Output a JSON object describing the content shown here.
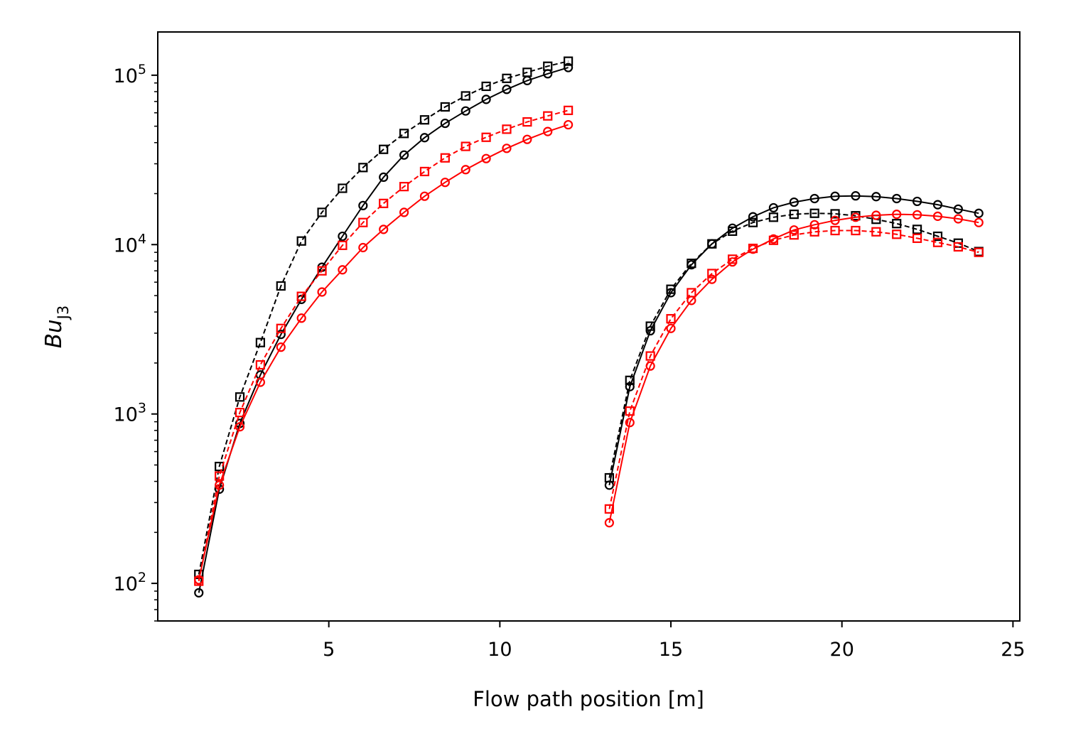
{
  "chart_data": {
    "type": "line",
    "title": "",
    "xlabel": "Flow path position [m]",
    "ylabel": {
      "base": "Bu",
      "subscript": "J3"
    },
    "x_scale": "linear",
    "y_scale": "log",
    "xlim": [
      0.0,
      25.2
    ],
    "ylim": [
      60,
      180000
    ],
    "x_ticks": [
      5,
      10,
      15,
      20,
      25
    ],
    "y_ticks": [
      {
        "value": 100,
        "base": "10",
        "exp": "2"
      },
      {
        "value": 1000,
        "base": "10",
        "exp": "3"
      },
      {
        "value": 10000,
        "base": "10",
        "exp": "4"
      },
      {
        "value": 100000,
        "base": "10",
        "exp": "5"
      }
    ],
    "grid": false,
    "legend": "none",
    "series": [
      {
        "color": "#000000",
        "marker": "circle",
        "linestyle": "solid",
        "segments": [
          {
            "x": [
              1.2,
              1.8,
              2.4,
              3.0,
              3.6,
              4.2,
              4.8,
              5.4,
              6.0,
              6.6,
              7.2,
              7.8,
              8.4,
              9.0,
              9.6,
              10.2,
              10.8,
              11.4,
              12.0
            ],
            "y": [
              88,
              360,
              880,
              1700,
              2950,
              4750,
              7350,
              11200,
              17000,
              25000,
              33800,
              42800,
              52000,
              61500,
              72000,
              82500,
              93000,
              102000,
              111000
            ]
          },
          {
            "x": [
              13.2,
              13.8,
              14.4,
              15.0,
              15.6,
              16.2,
              16.8,
              17.4,
              18.0,
              18.6,
              19.2,
              19.8,
              20.4,
              21.0,
              21.6,
              22.2,
              22.8,
              23.4,
              24.0
            ],
            "y": [
              380,
              1450,
              3100,
              5200,
              7600,
              10100,
              12500,
              14600,
              16500,
              17800,
              18700,
              19300,
              19400,
              19200,
              18700,
              18000,
              17200,
              16200,
              15300
            ]
          }
        ]
      },
      {
        "color": "#000000",
        "marker": "square",
        "linestyle": "dashed",
        "segments": [
          {
            "x": [
              1.2,
              1.8,
              2.4,
              3.0,
              3.6,
              4.2,
              4.8,
              5.4,
              6.0,
              6.6,
              7.2,
              7.8,
              8.4,
              9.0,
              9.6,
              10.2,
              10.8,
              11.4,
              12.0
            ],
            "y": [
              113,
              490,
              1260,
              2640,
              5700,
              10500,
              15500,
              21500,
              28500,
              36500,
              45300,
              54500,
              65000,
              75500,
              86000,
              95800,
              104000,
              113000,
              121000
            ]
          },
          {
            "x": [
              13.2,
              13.8,
              14.4,
              15.0,
              15.6,
              16.2,
              16.8,
              17.4,
              18.0,
              18.6,
              19.2,
              19.8,
              20.4,
              21.0,
              21.6,
              22.2,
              22.8,
              23.4,
              24.0
            ],
            "y": [
              420,
              1580,
              3300,
              5450,
              7750,
              10100,
              12000,
              13500,
              14500,
              15100,
              15300,
              15200,
              14800,
              14100,
              13300,
              12300,
              11200,
              10200,
              9100
            ]
          }
        ]
      },
      {
        "color": "#ff0000",
        "marker": "circle",
        "linestyle": "solid",
        "segments": [
          {
            "x": [
              1.2,
              1.8,
              2.4,
              3.0,
              3.6,
              4.2,
              4.8,
              5.4,
              6.0,
              6.6,
              7.2,
              7.8,
              8.4,
              9.0,
              9.6,
              10.2,
              10.8,
              11.4,
              12.0
            ],
            "y": [
              105,
              380,
              840,
              1540,
              2480,
              3680,
              5250,
              7100,
              9600,
              12300,
              15500,
              19300,
              23300,
              27700,
              32200,
              37000,
              41800,
              46500,
              51000
            ]
          },
          {
            "x": [
              13.2,
              13.8,
              14.4,
              15.0,
              15.6,
              16.2,
              16.8,
              17.4,
              18.0,
              18.6,
              19.2,
              19.8,
              20.4,
              21.0,
              21.6,
              22.2,
              22.8,
              23.4,
              24.0
            ],
            "y": [
              228,
              890,
              1920,
              3200,
              4680,
              6240,
              7900,
              9400,
              10800,
              12200,
              13100,
              13900,
              14500,
              14900,
              15100,
              15000,
              14700,
              14200,
              13500
            ]
          }
        ]
      },
      {
        "color": "#ff0000",
        "marker": "square",
        "linestyle": "dashed",
        "segments": [
          {
            "x": [
              1.2,
              1.8,
              2.4,
              3.0,
              3.6,
              4.2,
              4.8,
              5.4,
              6.0,
              6.6,
              7.2,
              7.8,
              8.4,
              9.0,
              9.6,
              10.2,
              10.8,
              11.4,
              12.0
            ],
            "y": [
              103,
              430,
              1020,
              1950,
              3200,
              4950,
              7000,
              9900,
              13500,
              17500,
              22000,
              27000,
              32500,
              38000,
              43000,
              48000,
              53000,
              57500,
              62000
            ]
          },
          {
            "x": [
              13.2,
              13.8,
              14.4,
              15.0,
              15.6,
              16.2,
              16.8,
              17.4,
              18.0,
              18.6,
              19.2,
              19.8,
              20.4,
              21.0,
              21.6,
              22.2,
              22.8,
              23.4,
              24.0
            ],
            "y": [
              275,
              1040,
              2200,
              3650,
              5200,
              6750,
              8200,
              9500,
              10600,
              11400,
              11900,
              12100,
              12100,
              11900,
              11500,
              10900,
              10300,
              9700,
              9000
            ]
          }
        ]
      }
    ]
  }
}
